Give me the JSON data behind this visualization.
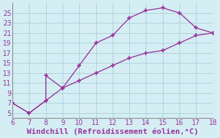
{
  "xlabel": "Windchill (Refroidissement éolien,°C)",
  "x_upper": [
    6,
    7,
    8,
    8,
    9,
    10,
    11,
    12,
    13,
    14,
    15,
    16,
    17,
    18
  ],
  "y_upper": [
    7,
    5,
    7.5,
    12.5,
    10,
    14.5,
    19,
    20.5,
    24,
    25.5,
    26,
    25,
    22,
    21
  ],
  "x_lower": [
    6,
    7,
    8,
    9,
    10,
    11,
    12,
    13,
    14,
    15,
    16,
    17,
    18
  ],
  "y_lower": [
    7,
    5,
    7.5,
    10,
    11.5,
    13,
    14.5,
    16,
    17,
    17.5,
    19,
    20.5,
    21
  ],
  "line_color": "#993399",
  "bg_color": "#d4eef4",
  "grid_color": "#aaccdd",
  "xlim": [
    6,
    18
  ],
  "ylim": [
    4,
    27
  ],
  "xticks": [
    6,
    7,
    8,
    9,
    10,
    11,
    12,
    13,
    14,
    15,
    16,
    17,
    18
  ],
  "yticks": [
    5,
    7,
    9,
    11,
    13,
    15,
    17,
    19,
    21,
    23,
    25
  ],
  "tick_fontsize": 7,
  "xlabel_fontsize": 8
}
